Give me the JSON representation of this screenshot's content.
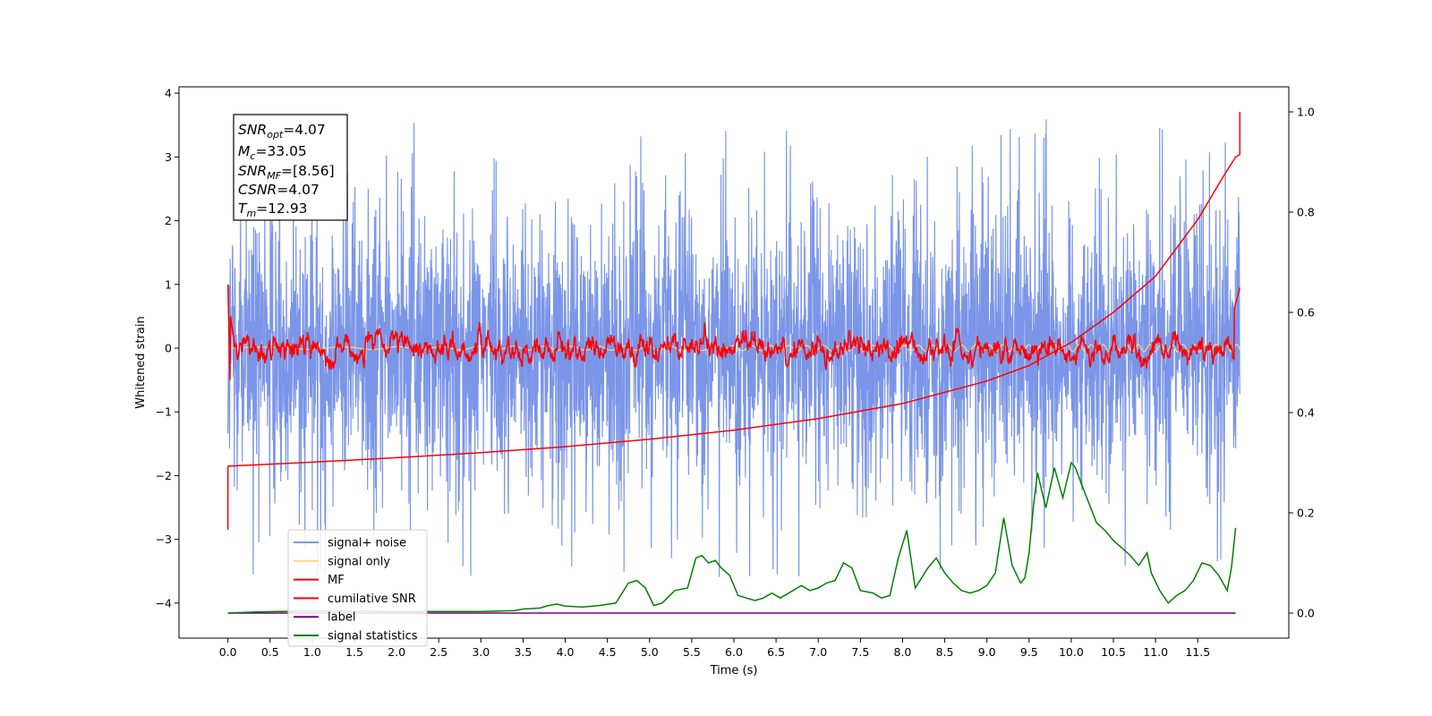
{
  "chart_data": {
    "type": "line",
    "title": "",
    "xlabel": "Time (s)",
    "ylabel": "Whitened strain",
    "y2label": "",
    "xlim": [
      -0.58,
      12.58
    ],
    "ylim": [
      -4.55,
      4.1
    ],
    "y2lim": [
      -0.05,
      1.05
    ],
    "x_ticks": [
      "0.0",
      "0.5",
      "1.0",
      "1.5",
      "2.0",
      "2.5",
      "3.0",
      "3.5",
      "4.0",
      "4.5",
      "5.0",
      "5.5",
      "6.0",
      "6.5",
      "7.0",
      "7.5",
      "8.0",
      "8.5",
      "9.0",
      "9.5",
      "10.0",
      "10.5",
      "11.0",
      "11.5"
    ],
    "y_ticks": [
      4,
      3,
      2,
      1,
      0,
      -1,
      -2,
      -3,
      -4
    ],
    "y2_ticks": [
      "0.0",
      "0.2",
      "0.4",
      "0.6",
      "0.8",
      "1.0"
    ],
    "grid": false,
    "legend_position": "lower-left",
    "annotation": {
      "snr_opt": {
        "base": "SNR",
        "sub": "opt",
        "value": "=4.07"
      },
      "mc": {
        "base": "M",
        "sub": "c",
        "value": "=33.05"
      },
      "snr_mf": {
        "base": "SNR",
        "sub": "MF",
        "value": "=[8.56]"
      },
      "csnr": {
        "base": "CSNR",
        "sub": "",
        "value": "=4.07"
      },
      "tm": {
        "base": "T",
        "sub": "m",
        "value": "=12.93"
      }
    },
    "series": [
      {
        "name": "signal+ noise",
        "color": "#7b96e8",
        "axis": "left",
        "noise_range": [
          -3.6,
          3.65
        ]
      },
      {
        "name": "signal only",
        "color": "#ffd480",
        "axis": "left"
      },
      {
        "name": "MF",
        "color": "#ff0000",
        "axis": "left"
      },
      {
        "name": "cumilative SNR",
        "color": "#ff0000",
        "axis": "right",
        "x": [
          0.0,
          1.0,
          2.0,
          3.0,
          4.0,
          5.0,
          6.0,
          7.0,
          8.0,
          9.0,
          9.5,
          10.0,
          10.5,
          11.0,
          11.5,
          11.8,
          11.95,
          12.0,
          12.0
        ],
        "values": [
          0.293,
          0.301,
          0.31,
          0.32,
          0.332,
          0.347,
          0.365,
          0.388,
          0.418,
          0.463,
          0.494,
          0.54,
          0.6,
          0.672,
          0.785,
          0.87,
          0.91,
          0.915,
          1.0
        ]
      },
      {
        "name": "label",
        "color": "#7a0080",
        "axis": "right",
        "x": [
          0.0,
          11.95
        ],
        "values": [
          0.0,
          0.0
        ]
      },
      {
        "name": "signal statistics",
        "color": "#008000",
        "axis": "right",
        "x": [
          0.0,
          0.3,
          0.6,
          1.0,
          1.5,
          2.0,
          2.5,
          3.0,
          3.4,
          3.5,
          3.7,
          3.8,
          3.9,
          4.0,
          4.2,
          4.4,
          4.6,
          4.75,
          4.85,
          4.95,
          5.05,
          5.15,
          5.3,
          5.45,
          5.55,
          5.62,
          5.7,
          5.78,
          5.85,
          5.95,
          6.05,
          6.15,
          6.25,
          6.35,
          6.45,
          6.55,
          6.7,
          6.8,
          6.9,
          7.0,
          7.1,
          7.2,
          7.3,
          7.4,
          7.5,
          7.65,
          7.75,
          7.85,
          7.95,
          8.05,
          8.15,
          8.3,
          8.4,
          8.5,
          8.6,
          8.7,
          8.8,
          8.9,
          9.0,
          9.1,
          9.2,
          9.3,
          9.4,
          9.45,
          9.5,
          9.55,
          9.6,
          9.7,
          9.8,
          9.9,
          10.0,
          10.05,
          10.15,
          10.3,
          10.4,
          10.5,
          10.6,
          10.7,
          10.8,
          10.9,
          10.95,
          11.05,
          11.15,
          11.25,
          11.35,
          11.45,
          11.55,
          11.65,
          11.75,
          11.85,
          11.9,
          11.95
        ],
        "values": [
          0.0,
          0.002,
          0.003,
          0.004,
          0.004,
          0.003,
          0.003,
          0.003,
          0.005,
          0.008,
          0.01,
          0.015,
          0.018,
          0.014,
          0.012,
          0.015,
          0.02,
          0.06,
          0.065,
          0.05,
          0.015,
          0.02,
          0.045,
          0.05,
          0.11,
          0.115,
          0.1,
          0.105,
          0.09,
          0.075,
          0.035,
          0.03,
          0.025,
          0.03,
          0.04,
          0.03,
          0.045,
          0.055,
          0.045,
          0.05,
          0.06,
          0.065,
          0.1,
          0.09,
          0.045,
          0.04,
          0.03,
          0.035,
          0.11,
          0.165,
          0.05,
          0.09,
          0.11,
          0.08,
          0.06,
          0.045,
          0.04,
          0.045,
          0.055,
          0.08,
          0.19,
          0.095,
          0.06,
          0.07,
          0.12,
          0.21,
          0.28,
          0.21,
          0.29,
          0.23,
          0.3,
          0.29,
          0.245,
          0.18,
          0.165,
          0.145,
          0.13,
          0.115,
          0.095,
          0.12,
          0.08,
          0.045,
          0.02,
          0.035,
          0.045,
          0.065,
          0.1,
          0.095,
          0.075,
          0.045,
          0.09,
          0.17
        ]
      }
    ]
  }
}
